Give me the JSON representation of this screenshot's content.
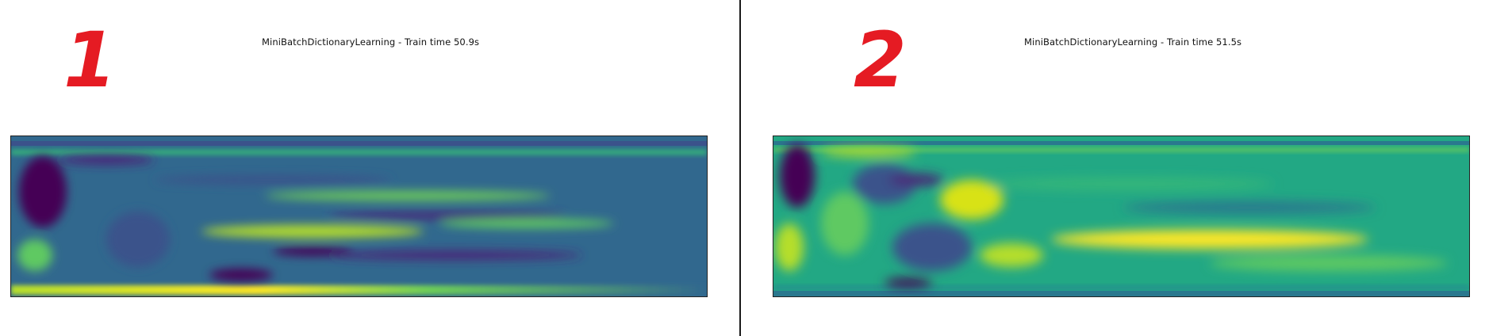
{
  "panels": [
    {
      "label": "1",
      "title": "MiniBatchDictionaryLearning - Train time 50.9s",
      "colormap": "viridis",
      "base_color": "#31688e"
    },
    {
      "label": "2",
      "title": "MiniBatchDictionaryLearning - Train time 51.5s",
      "colormap": "viridis",
      "base_color": "#22a884"
    }
  ],
  "colors": {
    "annotation": "#e51b23",
    "divider": "#1a1a1a"
  }
}
